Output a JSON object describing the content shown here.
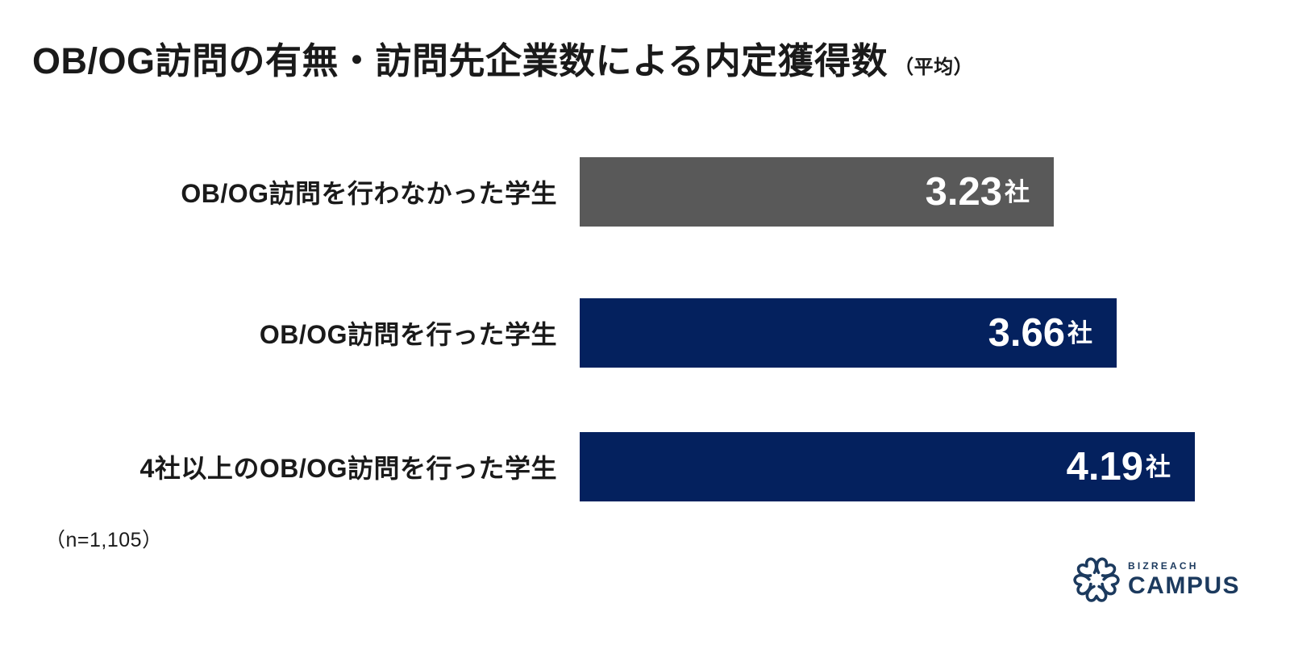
{
  "title": {
    "main": "OB/OG訪問の有無・訪問先企業数による内定獲得数",
    "suffix": "（平均）"
  },
  "footnote": "（n=1,105）",
  "logo": {
    "brand_top": "BIZREACH",
    "brand_bottom": "CAMPUS",
    "icon": "sakura-flower-icon",
    "color": "#1c3a5e"
  },
  "colors": {
    "background": "#ffffff",
    "title_text": "#1a1a1a",
    "bar_gray": "#595959",
    "bar_navy": "#04215e",
    "value_text": "#ffffff"
  },
  "chart_data": {
    "type": "bar",
    "orientation": "horizontal",
    "title": "OB/OG訪問の有無・訪問先企業数による内定獲得数（平均）",
    "sample_size": "n=1,105",
    "unit": "社",
    "categories": [
      "OB/OG訪問を行わなかった学生",
      "OB/OG訪問を行った学生",
      "4社以上のOB/OG訪問を行った学生"
    ],
    "values": [
      3.23,
      3.66,
      4.19
    ],
    "value_labels": [
      "3.23",
      "3.66",
      "4.19"
    ],
    "bar_colors": [
      "#595959",
      "#04215e",
      "#04215e"
    ],
    "xlim": [
      0,
      4.19
    ],
    "grid": false,
    "legend": false,
    "value_label_position": "inside-right"
  }
}
